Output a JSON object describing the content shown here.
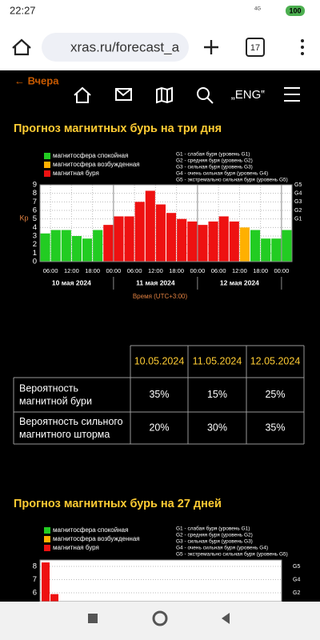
{
  "status_bar": {
    "time": "22:27",
    "network": "4G",
    "battery": "100"
  },
  "browser": {
    "url": "xras.ru/forecast_a",
    "tabs": "17"
  },
  "nav": {
    "back": "← Вчера",
    "lang": "„ENG‟"
  },
  "section1": {
    "title": "Прогноз магнитных бурь на три дня",
    "chart": {
      "legend": [
        {
          "name": "магнитосфера спокойная",
          "color": "#22cc22"
        },
        {
          "name": "магнитосфера возбужденная",
          "color": "#ffb000"
        },
        {
          "name": "магнитная буря",
          "color": "#ee1111"
        }
      ],
      "g_legend": [
        "G1 - слабая буря (уровень G1)",
        "G2 - средняя буря (уровень G2)",
        "G3 - сильная буря (уровень G3)",
        "G4 - очень сильная буря (уровень G4)",
        "G5 - экстремально сильная буря (уровень G5)"
      ],
      "y_label": "Kp",
      "ylim": [
        0,
        9
      ],
      "yticks": [
        0,
        1,
        2,
        3,
        4,
        5,
        6,
        7,
        8,
        9
      ],
      "g_ticks": [
        "G1",
        "G2",
        "G3",
        "G4",
        "G5"
      ],
      "hours": [
        "06:00",
        "12:00",
        "18:00",
        "00:00",
        "06:00",
        "12:00",
        "18:00",
        "00:00",
        "06:00",
        "12:00",
        "18:00",
        "00:00"
      ],
      "days": [
        "10 мая 2024",
        "11 мая 2024",
        "12 мая 2024"
      ],
      "x_label": "Время (UTC+3:00)",
      "values": [
        3.3,
        3.7,
        3.7,
        3.0,
        2.7,
        3.7,
        4.3,
        5.3,
        5.3,
        7.0,
        8.3,
        6.7,
        5.7,
        5.0,
        4.7,
        4.3,
        4.7,
        5.3,
        4.7,
        4.0,
        3.7,
        2.7,
        2.7,
        3.7
      ],
      "colors": [
        "#22cc22",
        "#22cc22",
        "#22cc22",
        "#22cc22",
        "#22cc22",
        "#22cc22",
        "#ee1111",
        "#ee1111",
        "#ee1111",
        "#ee1111",
        "#ee1111",
        "#ee1111",
        "#ee1111",
        "#ee1111",
        "#ee1111",
        "#ee1111",
        "#ee1111",
        "#ee1111",
        "#ee1111",
        "#ffb000",
        "#22cc22",
        "#22cc22",
        "#22cc22",
        "#22cc22"
      ]
    }
  },
  "table": {
    "header": [
      "10.05.2024",
      "11.05.2024",
      "12.05.2024"
    ],
    "rows": [
      [
        "Вероятность магнитной бури",
        "35%",
        "15%",
        "25%"
      ],
      [
        "Вероятность сильного магнитного шторма",
        "20%",
        "30%",
        "35%"
      ]
    ]
  },
  "section2": {
    "title": "Прогноз магнитных бурь на 27 дней",
    "chart": {
      "legend": [
        {
          "name": "магнитосфера спокойная",
          "color": "#22cc22"
        },
        {
          "name": "магнитосфера возбужденная",
          "color": "#ffb000"
        },
        {
          "name": "магнитная буря",
          "color": "#ee1111"
        }
      ],
      "g_legend": [
        "G1 - слабая буря (уровень G1)",
        "G2 - средняя буря (уровень G2)",
        "G3 - сильная буря (уровень G3)",
        "G4 - очень сильная буря (уровень G4)",
        "G5 - экстремально сильная буря (уровень G5)"
      ],
      "yticks": [
        8,
        7,
        6
      ],
      "g_ticks": [
        "G5",
        "G4",
        "G2"
      ],
      "values": [
        8.3,
        5.9
      ],
      "colors": [
        "#ee1111",
        "#ee1111"
      ]
    }
  }
}
